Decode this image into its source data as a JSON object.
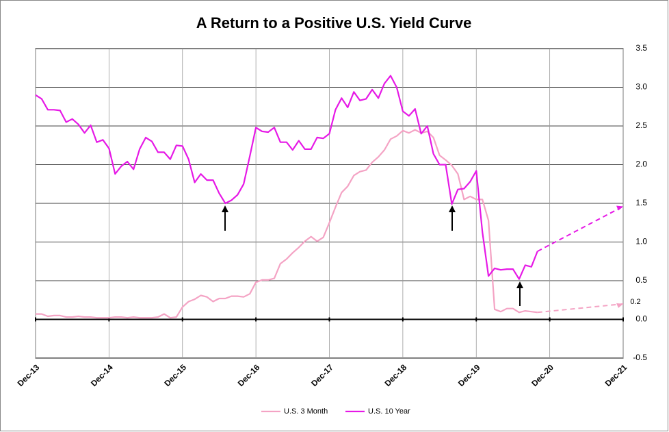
{
  "chart_data": {
    "type": "line",
    "title": "A Return to a Positive U.S. Yield Curve",
    "categories": [
      "Dec-13",
      null,
      null,
      null,
      null,
      null,
      null,
      null,
      null,
      null,
      null,
      null,
      "Dec-14",
      null,
      null,
      null,
      null,
      null,
      null,
      null,
      null,
      null,
      null,
      null,
      "Dec-15",
      null,
      null,
      null,
      null,
      null,
      null,
      null,
      null,
      null,
      null,
      null,
      "Dec-16",
      null,
      null,
      null,
      null,
      null,
      null,
      null,
      null,
      null,
      null,
      null,
      "Dec-17",
      null,
      null,
      null,
      null,
      null,
      null,
      null,
      null,
      null,
      null,
      null,
      "Dec-18",
      null,
      null,
      null,
      null,
      null,
      null,
      null,
      null,
      null,
      null,
      null,
      "Dec-19",
      null,
      null,
      null,
      null,
      null,
      null,
      null,
      null,
      null,
      null,
      null,
      "Dec-20",
      null,
      null,
      null,
      null,
      null,
      null,
      null,
      null,
      null,
      null,
      null,
      "Dec-21"
    ],
    "series": [
      {
        "name": "U.S. 3 Month",
        "color": "#f4a3c4",
        "values": [
          0.07,
          0.07,
          0.04,
          0.05,
          0.05,
          0.03,
          0.03,
          0.04,
          0.03,
          0.03,
          0.02,
          0.02,
          0.02,
          0.03,
          0.03,
          0.02,
          0.03,
          0.02,
          0.02,
          0.02,
          0.03,
          0.07,
          0.02,
          0.03,
          0.16,
          0.23,
          0.26,
          0.31,
          0.29,
          0.23,
          0.27,
          0.27,
          0.3,
          0.3,
          0.29,
          0.33,
          0.48,
          0.51,
          0.51,
          0.53,
          0.72,
          0.78,
          0.86,
          0.93,
          1.01,
          1.07,
          1.01,
          1.06,
          1.25,
          1.45,
          1.64,
          1.72,
          1.86,
          1.91,
          1.93,
          2.03,
          2.1,
          2.19,
          2.33,
          2.37,
          2.44,
          2.41,
          2.45,
          2.41,
          2.43,
          2.35,
          2.12,
          2.06,
          1.99,
          1.88,
          1.55,
          1.59,
          1.55,
          1.55,
          1.28,
          0.13,
          0.1,
          0.14,
          0.14,
          0.09,
          0.11,
          0.1,
          0.09,
          null,
          null,
          null,
          null,
          null,
          null,
          null,
          null,
          null,
          null,
          null,
          null,
          null,
          null
        ]
      },
      {
        "name": "U.S. 10 Year",
        "color": "#e619e6",
        "values": [
          2.9,
          2.85,
          2.71,
          2.71,
          2.7,
          2.55,
          2.59,
          2.52,
          2.41,
          2.51,
          2.29,
          2.32,
          2.21,
          1.88,
          1.98,
          2.04,
          1.94,
          2.2,
          2.35,
          2.3,
          2.16,
          2.16,
          2.07,
          2.25,
          2.24,
          2.07,
          1.77,
          1.88,
          1.8,
          1.8,
          1.63,
          1.5,
          1.54,
          1.61,
          1.75,
          2.11,
          2.48,
          2.43,
          2.42,
          2.48,
          2.29,
          2.29,
          2.19,
          2.31,
          2.2,
          2.2,
          2.35,
          2.34,
          2.4,
          2.71,
          2.86,
          2.74,
          2.94,
          2.83,
          2.85,
          2.97,
          2.86,
          3.05,
          3.15,
          3.0,
          2.69,
          2.63,
          2.72,
          2.4,
          2.5,
          2.14,
          2.0,
          2.0,
          1.49,
          1.68,
          1.69,
          1.78,
          1.92,
          1.13,
          0.56,
          0.66,
          0.64,
          0.65,
          0.65,
          0.52,
          0.7,
          0.68,
          0.88,
          null,
          null,
          null,
          null,
          null,
          null,
          null,
          null,
          null,
          null,
          null,
          null,
          null,
          null
        ]
      }
    ],
    "projections": [
      {
        "color": "#f4a3c4",
        "dashed": true,
        "values": [
          null,
          null,
          null,
          null,
          null,
          null,
          null,
          null,
          null,
          null,
          null,
          null,
          null,
          null,
          null,
          null,
          null,
          null,
          null,
          null,
          null,
          null,
          null,
          null,
          null,
          null,
          null,
          null,
          null,
          null,
          null,
          null,
          null,
          null,
          null,
          null,
          null,
          null,
          null,
          null,
          null,
          null,
          null,
          null,
          null,
          null,
          null,
          null,
          null,
          null,
          null,
          null,
          null,
          null,
          null,
          null,
          null,
          null,
          null,
          null,
          null,
          null,
          null,
          null,
          null,
          null,
          null,
          null,
          null,
          null,
          null,
          null,
          null,
          null,
          null,
          null,
          null,
          null,
          null,
          null,
          null,
          null,
          0.09,
          null,
          null,
          null,
          null,
          null,
          null,
          null,
          null,
          null,
          null,
          null,
          null,
          null,
          0.2
        ]
      },
      {
        "color": "#e619e6",
        "dashed": true,
        "values": [
          null,
          null,
          null,
          null,
          null,
          null,
          null,
          null,
          null,
          null,
          null,
          null,
          null,
          null,
          null,
          null,
          null,
          null,
          null,
          null,
          null,
          null,
          null,
          null,
          null,
          null,
          null,
          null,
          null,
          null,
          null,
          null,
          null,
          null,
          null,
          null,
          null,
          null,
          null,
          null,
          null,
          null,
          null,
          null,
          null,
          null,
          null,
          null,
          null,
          null,
          null,
          null,
          null,
          null,
          null,
          null,
          null,
          null,
          null,
          null,
          null,
          null,
          null,
          null,
          null,
          null,
          null,
          null,
          null,
          null,
          null,
          null,
          null,
          null,
          null,
          null,
          null,
          null,
          null,
          null,
          null,
          null,
          0.88,
          null,
          null,
          null,
          null,
          null,
          null,
          null,
          null,
          null,
          null,
          null,
          null,
          null,
          1.46
        ]
      }
    ],
    "annotations": [
      "0.2"
    ],
    "ylim": [
      -0.5,
      3.5
    ],
    "yticks": [
      -0.5,
      {
        "value": 0,
        "label": "0.0"
      },
      0.5,
      {
        "value": 1,
        "label": "1.0"
      },
      1.5,
      {
        "value": 2,
        "label": "2.0"
      },
      2.5,
      {
        "value": 3,
        "label": "3.0"
      },
      3.5
    ],
    "y_axis_side": "right",
    "grid": true,
    "legend": "bottom"
  }
}
